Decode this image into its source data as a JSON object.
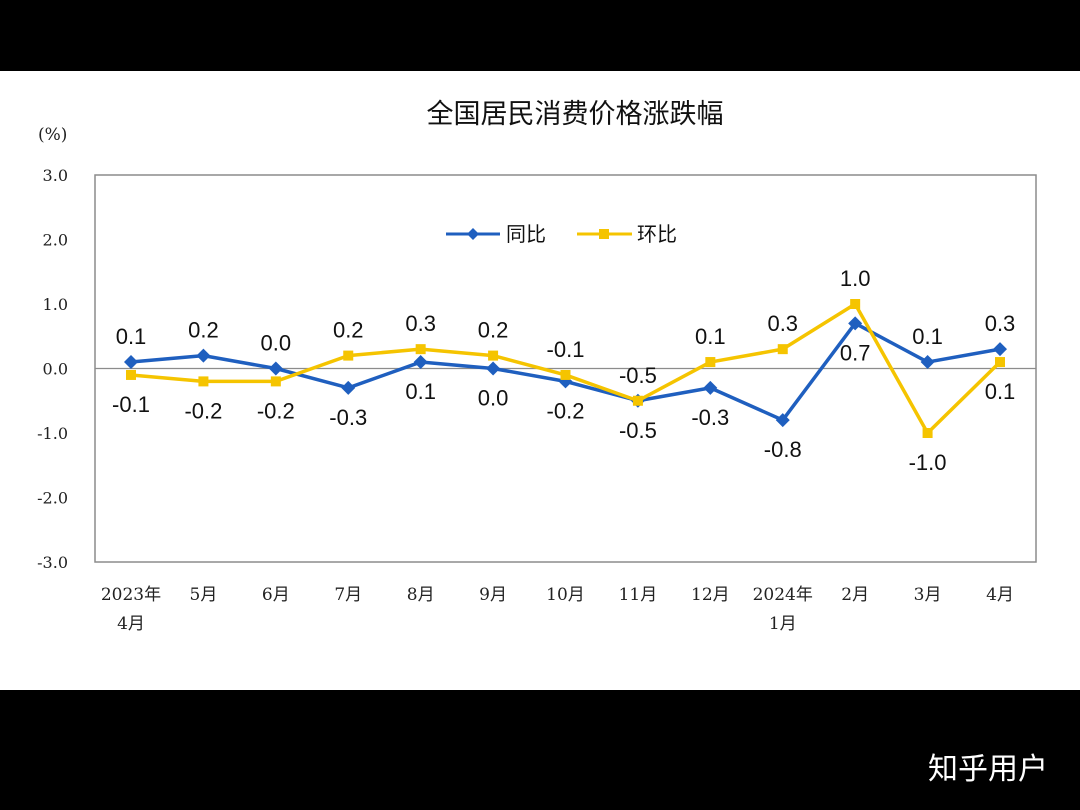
{
  "chart_data": {
    "type": "line",
    "title": "全国居民消费价格涨跌幅",
    "ylabel": "(%)",
    "xlabel": "",
    "ylim": [
      -3.0,
      3.0
    ],
    "yticks": [
      "3.0",
      "2.0",
      "1.0",
      "0.0",
      "-1.0",
      "-2.0",
      "-3.0"
    ],
    "ytick_values": [
      3,
      2,
      1,
      0,
      -1,
      -2,
      -3
    ],
    "categories": [
      [
        "2023年",
        "4月"
      ],
      [
        "5月"
      ],
      [
        "6月"
      ],
      [
        "7月"
      ],
      [
        "8月"
      ],
      [
        "9月"
      ],
      [
        "10月"
      ],
      [
        "11月"
      ],
      [
        "12月"
      ],
      [
        "2024年",
        "1月"
      ],
      [
        "2月"
      ],
      [
        "3月"
      ],
      [
        "4月"
      ]
    ],
    "grid": false,
    "legend_position": "top-center",
    "series": [
      {
        "name": "同比",
        "color": "#1f5fbf",
        "marker": "diamond",
        "values": [
          0.1,
          0.2,
          0.0,
          -0.3,
          0.1,
          0.0,
          -0.2,
          -0.5,
          -0.3,
          -0.8,
          0.7,
          0.1,
          0.3
        ],
        "labels": [
          "0.1",
          "0.2",
          "0.0",
          "-0.3",
          "0.1",
          "0.0",
          "-0.2",
          "-0.5",
          "-0.3",
          "-0.8",
          "0.7",
          "0.1",
          "0.3"
        ],
        "label_side": [
          "above",
          "above",
          "above",
          "below",
          "below",
          "below",
          "below",
          "below",
          "below",
          "below",
          "below",
          "above",
          "above"
        ]
      },
      {
        "name": "环比",
        "color": "#f5c400",
        "marker": "square",
        "values": [
          -0.1,
          -0.2,
          -0.2,
          0.2,
          0.3,
          0.2,
          -0.1,
          -0.5,
          0.1,
          0.3,
          1.0,
          -1.0,
          0.1
        ],
        "labels": [
          "-0.1",
          "-0.2",
          "-0.2",
          "0.2",
          "0.3",
          "0.2",
          "-0.1",
          "-0.5",
          "0.1",
          "0.3",
          "1.0",
          "-1.0",
          "0.1"
        ],
        "label_side": [
          "below",
          "below",
          "below",
          "above",
          "above",
          "above",
          "above",
          "above",
          "above",
          "above",
          "above",
          "below",
          "below"
        ]
      }
    ]
  },
  "watermark": "知乎用户"
}
